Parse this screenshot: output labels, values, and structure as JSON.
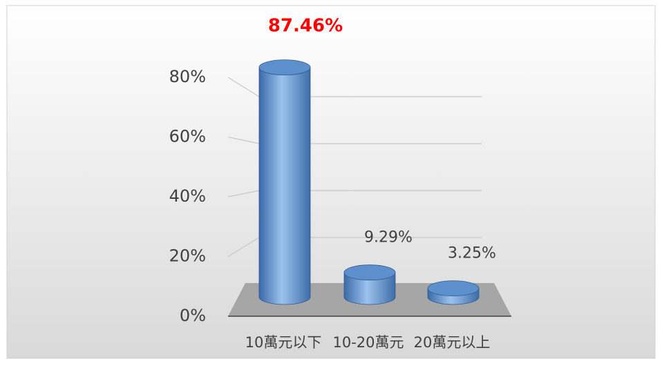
{
  "chart_data": {
    "type": "bar3d",
    "categories": [
      "10萬元以下",
      "10-20萬元",
      "20萬元以上"
    ],
    "values": [
      87.46,
      9.29,
      3.25
    ],
    "value_labels": [
      "87.46%",
      "9.29%",
      "3.25%"
    ],
    "value_label_colors": [
      "#ff0000",
      "#404040",
      "#404040"
    ],
    "color": "#4f81bd",
    "ylim": [
      0,
      80
    ],
    "yticks": [
      {
        "value": 0,
        "label": "0%"
      },
      {
        "value": 20,
        "label": "20%"
      },
      {
        "value": 40,
        "label": "40%"
      },
      {
        "value": 60,
        "label": "60%"
      },
      {
        "value": 80,
        "label": "80%"
      }
    ],
    "grid": true
  }
}
